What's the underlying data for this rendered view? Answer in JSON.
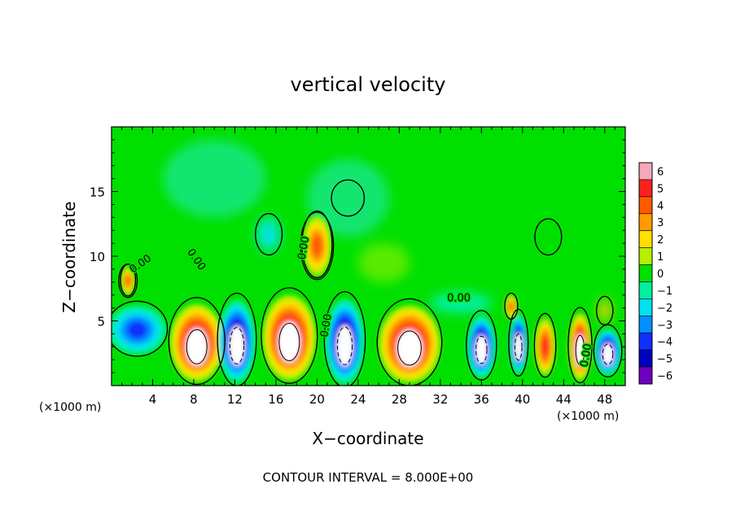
{
  "chart_data": {
    "type": "heatmap",
    "title": "vertical velocity",
    "xlabel": "X−coordinate",
    "ylabel": "Z−coordinate",
    "x_unit_left": "(×1000 m)",
    "x_unit_right": "(×1000 m)",
    "footer": "CONTOUR INTERVAL = 8.000E+00",
    "xlim": [
      0,
      50
    ],
    "ylim": [
      0,
      20
    ],
    "x_ticks": [
      4,
      8,
      12,
      16,
      20,
      24,
      28,
      32,
      36,
      40,
      44,
      48
    ],
    "y_ticks": [
      5,
      10,
      15
    ],
    "colorbar": {
      "levels": [
        6,
        5,
        4,
        3,
        2,
        1,
        0,
        -1,
        -2,
        -3,
        -4,
        -5,
        -6
      ],
      "labels": [
        "6",
        "5",
        "4",
        "3",
        "2",
        "1",
        "0",
        "−1",
        "−2",
        "−3",
        "−4",
        "−5",
        "−6"
      ],
      "colors": [
        "#f7a8b8",
        "#ff2020",
        "#ff5a00",
        "#ff9a00",
        "#ffe000",
        "#b4f000",
        "#00e000",
        "#00f0a0",
        "#00e0f0",
        "#0090ff",
        "#1030ff",
        "#0000c0",
        "#7000c0"
      ]
    },
    "contour_labels": [
      "0.00",
      "0.00",
      "0.00",
      "0.00",
      "0.00",
      "0.00"
    ],
    "cells": [
      {
        "x": 8.3,
        "z": 3.3,
        "rx": 2.6,
        "rz": 3.0,
        "w": 8
      },
      {
        "x": 12.2,
        "z": 3.4,
        "rx": 1.8,
        "rz": 3.2,
        "w": -8
      },
      {
        "x": 17.3,
        "z": 3.7,
        "rx": 2.6,
        "rz": 3.3,
        "w": 8
      },
      {
        "x": 22.7,
        "z": 3.4,
        "rx": 1.9,
        "rz": 3.3,
        "w": -8
      },
      {
        "x": 29.0,
        "z": 3.2,
        "rx": 3.0,
        "rz": 3.0,
        "w": 8
      },
      {
        "x": 36.0,
        "z": 3.0,
        "rx": 1.4,
        "rz": 2.4,
        "w": -8
      },
      {
        "x": 39.6,
        "z": 3.2,
        "rx": 0.9,
        "rz": 2.3,
        "w": -8
      },
      {
        "x": 42.2,
        "z": 3.0,
        "rx": 1.0,
        "rz": 2.2,
        "w": 5
      },
      {
        "x": 45.6,
        "z": 3.0,
        "rx": 1.1,
        "rz": 2.6,
        "w": 7
      },
      {
        "x": 48.3,
        "z": 2.6,
        "rx": 1.3,
        "rz": 1.8,
        "w": -8
      },
      {
        "x": 2.5,
        "z": 4.3,
        "rx": 2.8,
        "rz": 1.9,
        "w": -4
      },
      {
        "x": 1.6,
        "z": 8.1,
        "rx": 0.7,
        "rz": 1.1,
        "w": 4
      },
      {
        "x": 20.0,
        "z": 10.8,
        "rx": 1.4,
        "rz": 2.3,
        "w": 4
      },
      {
        "x": 15.3,
        "z": 11.7,
        "rx": 1.2,
        "rz": 1.4,
        "w": -2
      },
      {
        "x": 38.9,
        "z": 6.1,
        "rx": 0.6,
        "rz": 0.9,
        "w": 4
      },
      {
        "x": 48.0,
        "z": 5.8,
        "rx": 0.6,
        "rz": 0.9,
        "w": 3
      },
      {
        "x": 34.0,
        "z": 6.4,
        "rx": 3.0,
        "rz": 0.8,
        "w": -1
      },
      {
        "x": 26.5,
        "z": 9.5,
        "rx": 2.5,
        "rz": 1.5,
        "w": 0.6
      },
      {
        "x": 23.0,
        "z": 14.5,
        "rx": 4.0,
        "rz": 3.0,
        "w": -0.6
      },
      {
        "x": 10.0,
        "z": 16.0,
        "rx": 5.0,
        "rz": 3.0,
        "w": -0.5
      }
    ]
  }
}
